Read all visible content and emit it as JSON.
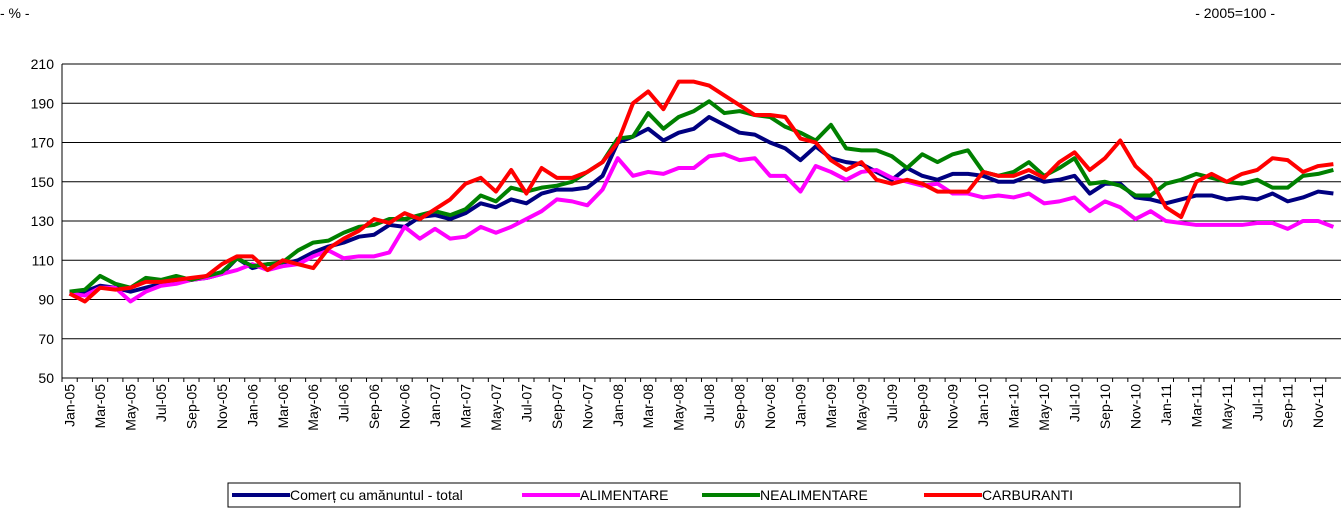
{
  "chart_data": {
    "type": "line",
    "unit_label": "- % -",
    "base_label": "- 2005=100 -",
    "categories": [
      "Jan-05",
      null,
      "Mar-05",
      null,
      "May-05",
      null,
      "Jul-05",
      null,
      "Sep-05",
      null,
      "Nov-05",
      null,
      "Jan-06",
      null,
      "Mar-06",
      null,
      "May-06",
      null,
      "Jul-06",
      null,
      "Sep-06",
      null,
      "Nov-06",
      null,
      "Jan-07",
      null,
      "Mar-07",
      null,
      "May-07",
      null,
      "Jul-07",
      null,
      "Sep-07",
      null,
      "Nov-07",
      null,
      "Jan-08",
      null,
      "Mar-08",
      null,
      "May-08",
      null,
      "Jul-08",
      null,
      "Sep-08",
      null,
      "Nov-08",
      null,
      "Jan-09",
      null,
      "Mar-09",
      null,
      "May-09",
      null,
      "Jul-09",
      null,
      "Sep-09",
      null,
      "Nov-09",
      null,
      "Jan-10",
      null,
      "Mar-10",
      null,
      "May-10",
      null,
      "Jul-10",
      null,
      "Sep-10",
      null,
      "Nov-10",
      null,
      "Jan-11",
      null,
      "Mar-11",
      null,
      "May-11",
      null,
      "Jul-11",
      null,
      "Sep-11",
      null,
      "Nov-11",
      null
    ],
    "series": [
      {
        "name": "Comerț cu amănuntul - total",
        "color": "#000080",
        "values": [
          93,
          94,
          97,
          96,
          94,
          96,
          98,
          99,
          100,
          101,
          103,
          111,
          106,
          108,
          108,
          110,
          114,
          117,
          119,
          122,
          123,
          128,
          127,
          132,
          133,
          131,
          134,
          139,
          137,
          141,
          139,
          144,
          146,
          146,
          147,
          153,
          170,
          173,
          177,
          171,
          175,
          177,
          183,
          179,
          175,
          174,
          170,
          167,
          161,
          168,
          162,
          160,
          159,
          155,
          151,
          157,
          153,
          151,
          154,
          154,
          153,
          150,
          150,
          153,
          150,
          151,
          153,
          144,
          149,
          149,
          142,
          141,
          139,
          141,
          143,
          143,
          141,
          142,
          141,
          144,
          140,
          142,
          145,
          144
        ]
      },
      {
        "name": "ALIMENTARE",
        "color": "#ff00ff",
        "values": [
          93,
          92,
          96,
          96,
          89,
          94,
          97,
          98,
          100,
          101,
          103,
          105,
          108,
          105,
          107,
          108,
          112,
          115,
          111,
          112,
          112,
          114,
          127,
          121,
          126,
          121,
          122,
          127,
          124,
          127,
          131,
          135,
          141,
          140,
          138,
          146,
          162,
          153,
          155,
          154,
          157,
          157,
          163,
          164,
          161,
          162,
          153,
          153,
          145,
          158,
          155,
          151,
          155,
          156,
          152,
          150,
          148,
          149,
          144,
          144,
          142,
          143,
          142,
          144,
          139,
          140,
          142,
          135,
          140,
          137,
          131,
          135,
          130,
          129,
          128,
          128,
          128,
          128,
          129,
          129,
          126,
          130,
          130,
          127
        ]
      },
      {
        "name": "NEALIMENTARE",
        "color": "#008000",
        "values": [
          94,
          95,
          102,
          98,
          96,
          101,
          100,
          102,
          100,
          102,
          104,
          111,
          107,
          108,
          109,
          115,
          119,
          120,
          124,
          127,
          128,
          131,
          131,
          133,
          135,
          133,
          136,
          143,
          140,
          147,
          145,
          147,
          148,
          150,
          155,
          160,
          172,
          173,
          185,
          177,
          183,
          186,
          191,
          185,
          186,
          184,
          183,
          178,
          175,
          171,
          179,
          167,
          166,
          166,
          163,
          157,
          164,
          160,
          164,
          166,
          155,
          153,
          155,
          160,
          153,
          157,
          162,
          149,
          150,
          148,
          143,
          143,
          149,
          151,
          154,
          152,
          150,
          149,
          151,
          147,
          147,
          153,
          154,
          156
        ]
      },
      {
        "name": "CARBURANTI",
        "color": "#ff0000",
        "values": [
          93,
          89,
          96,
          95,
          96,
          99,
          99,
          100,
          101,
          102,
          108,
          112,
          112,
          105,
          110,
          108,
          106,
          116,
          121,
          125,
          131,
          129,
          134,
          131,
          136,
          141,
          149,
          152,
          145,
          156,
          144,
          157,
          152,
          152,
          155,
          160,
          170,
          190,
          196,
          187,
          201,
          201,
          199,
          194,
          189,
          184,
          184,
          183,
          172,
          170,
          161,
          156,
          160,
          151,
          149,
          151,
          149,
          145,
          145,
          145,
          155,
          153,
          153,
          156,
          152,
          160,
          165,
          156,
          162,
          171,
          158,
          151,
          137,
          132,
          150,
          154,
          150,
          154,
          156,
          162,
          161,
          155,
          158,
          159
        ]
      }
    ],
    "ylim": [
      50,
      210
    ],
    "yticks": [
      50,
      70,
      90,
      110,
      130,
      150,
      170,
      190,
      210
    ],
    "grid": true
  }
}
